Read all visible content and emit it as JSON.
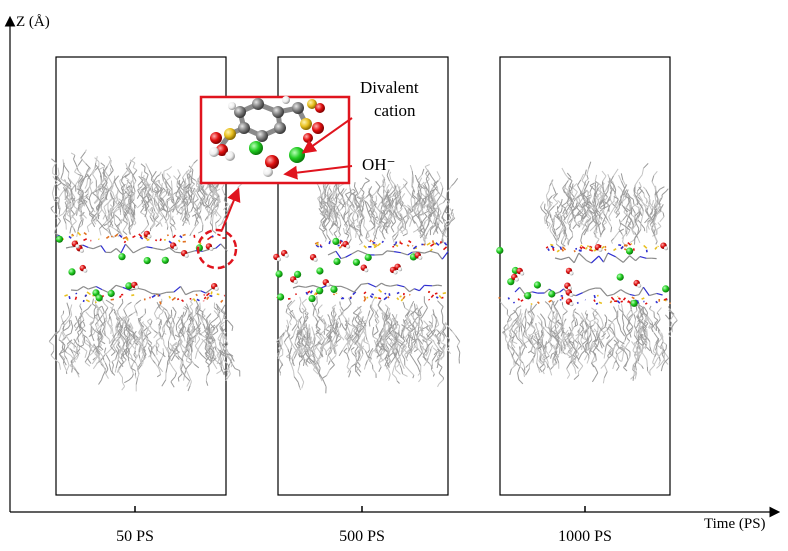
{
  "axes": {
    "y_label": "Z (Å)",
    "x_label": "Time (PS)"
  },
  "panels": [
    {
      "label": "50 PS"
    },
    {
      "label": "500 PS"
    },
    {
      "label": "1000 PS"
    }
  ],
  "annotations": {
    "cation_line1": "Divalent",
    "cation_line2": "cation",
    "hydroxide": "OH⁻"
  },
  "colors": {
    "callout": "#e0141e",
    "cation": "#22cc22",
    "oxygen": "#e01010",
    "sulfur": "#e8c020",
    "nitrogen": "#3030d0",
    "carbon": "#808080",
    "hydrogen": "#f0f0f0"
  }
}
